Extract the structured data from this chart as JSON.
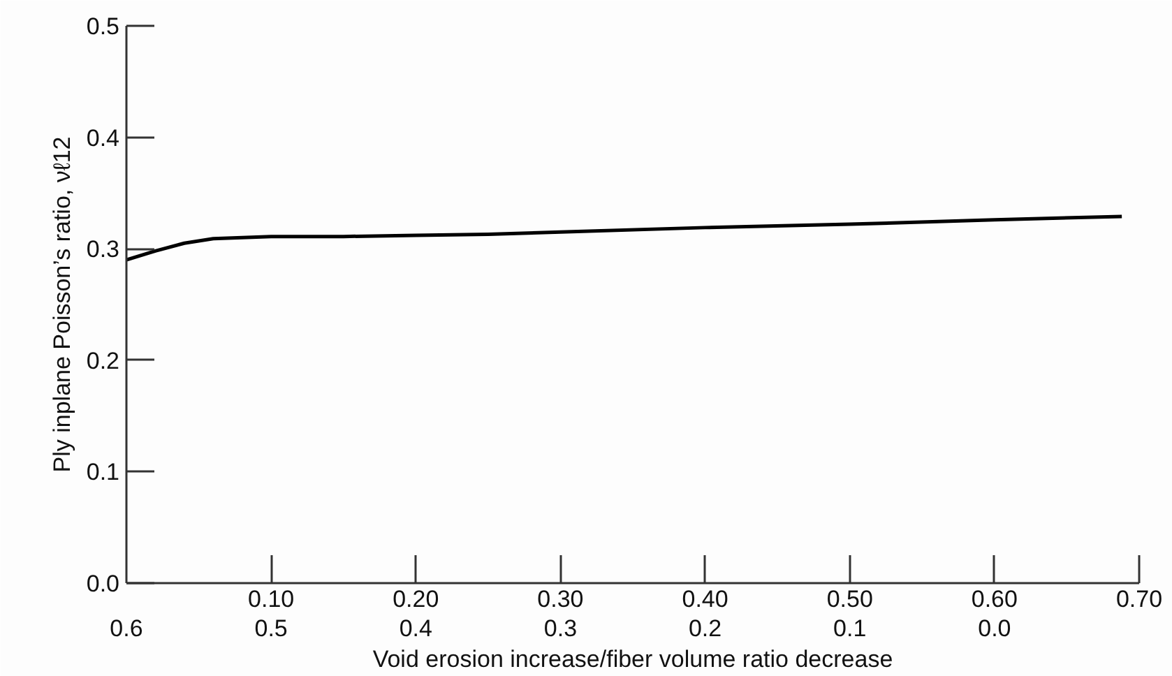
{
  "chart_data": {
    "type": "line",
    "xlabel": "Void erosion increase/fiber volume ratio decrease",
    "ylabel": "Ply inplane Poisson’s ratio, νℓ12",
    "x": [
      0,
      0.02,
      0.04,
      0.06,
      0.08,
      0.1,
      0.15,
      0.2,
      0.25,
      0.3,
      0.4,
      0.5,
      0.6,
      0.688
    ],
    "series": [
      {
        "color": "#000000",
        "values": [
          0.29,
          0.298,
          0.305,
          0.309,
          0.31,
          0.311,
          0.311,
          0.312,
          0.313,
          0.315,
          0.319,
          0.322,
          0.326,
          0.329
        ]
      }
    ],
    "xlim": [
      0,
      0.7
    ],
    "xticks": [
      {
        "value": 0.1,
        "label": "0.10"
      },
      {
        "value": 0.2,
        "label": "0.20"
      },
      {
        "value": 0.3,
        "label": "0.30"
      },
      {
        "value": 0.4,
        "label": "0.40"
      },
      {
        "value": 0.5,
        "label": "0.50"
      },
      {
        "value": 0.6,
        "label": "0.60"
      },
      {
        "value": 0.7,
        "label": "0.70"
      }
    ],
    "x2lim": [
      0.6,
      -0.1
    ],
    "x2ticks": [
      0.6,
      0.5,
      0.4,
      0.3,
      0.2,
      0.1,
      {
        "value": 0,
        "label": "0.0"
      }
    ],
    "ylim": [
      0,
      0.5
    ],
    "yticks": [
      {
        "value": 0,
        "label": "0.0"
      },
      0.1,
      0.2,
      0.3,
      0.4,
      0.5
    ],
    "grid": false,
    "marker": "none",
    "line_style": "solid"
  }
}
